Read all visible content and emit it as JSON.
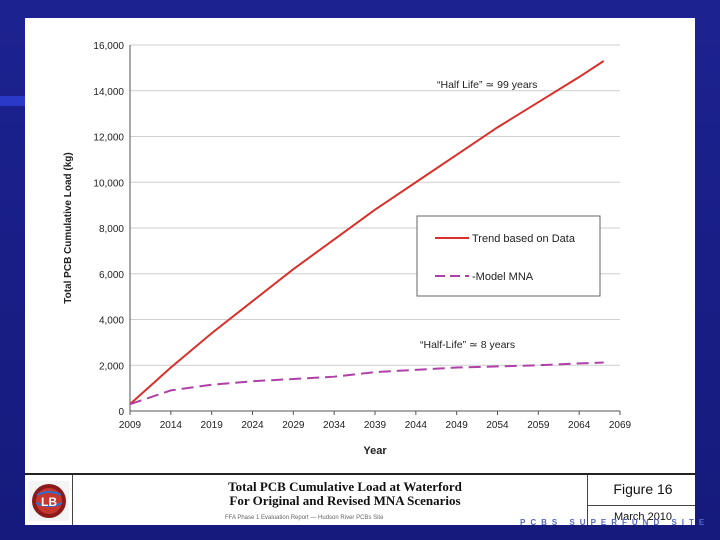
{
  "chart_data": {
    "type": "line",
    "xlabel": "Year",
    "ylabel": "Total PCB Cumulative Load (kg)",
    "x_ticks": [
      "2009",
      "2014",
      "2019",
      "2024",
      "2029",
      "2034",
      "2039",
      "2044",
      "2049",
      "2054",
      "2059",
      "2064",
      "2069"
    ],
    "y_ticks": [
      "0",
      "2,000",
      "4,000",
      "6,000",
      "8,000",
      "10,000",
      "12,000",
      "14,000",
      "16,000"
    ],
    "xlim": [
      2009,
      2069
    ],
    "ylim": [
      0,
      16000
    ],
    "series": [
      {
        "name": "Trend based on Data",
        "color": "#d9302a",
        "dash": "solid",
        "x": [
          2009,
          2014,
          2019,
          2024,
          2029,
          2034,
          2039,
          2044,
          2049,
          2054,
          2059,
          2064,
          2067
        ],
        "values": [
          300,
          1900,
          3400,
          4800,
          6200,
          7500,
          8800,
          10000,
          11200,
          12400,
          13500,
          14600,
          15300
        ]
      },
      {
        "name": "-Model MNA",
        "color": "#b040a8",
        "dash": "dashed",
        "x": [
          2009,
          2014,
          2019,
          2024,
          2029,
          2034,
          2039,
          2044,
          2049,
          2054,
          2059,
          2064,
          2067
        ],
        "values": [
          300,
          900,
          1150,
          1300,
          1400,
          1500,
          1700,
          1800,
          1900,
          1950,
          2000,
          2080,
          2120
        ]
      }
    ],
    "annotations": [
      {
        "text": "“Half Life” ≃ 99 years"
      },
      {
        "text": "“Half-Life” ≃ 8 years"
      }
    ],
    "legend_position": "center-right"
  },
  "footer": {
    "title_line1": "Total PCB Cumulative Load at Waterford",
    "title_line2": "For Original and Revised MNA Scenarios",
    "subtitle": "FFA Phase 1 Evaluation Report — Hudson River PCBs Site",
    "figure": "Figure 16",
    "date": "March 2010",
    "logo_letters": "LB"
  },
  "site_text": "PCBS SUPERFUND SITE"
}
